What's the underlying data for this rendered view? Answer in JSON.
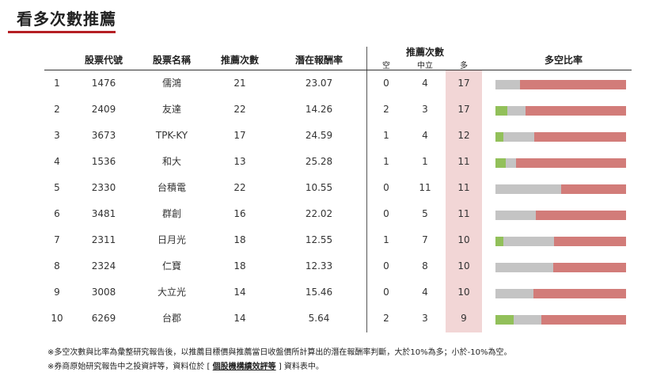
{
  "title": "看多次數推薦",
  "headers": {
    "code": "股票代號",
    "name": "股票名稱",
    "count": "推薦次數",
    "potential": "潛在報酬率",
    "stance_group": "推薦次數",
    "bear": "空",
    "neutral": "中立",
    "bull": "多",
    "ratio": "多空比率"
  },
  "colors": {
    "accent_rule": "#b51f24",
    "bull_column_bg": "#f2d6d6",
    "bar_bull": "#92c05a",
    "bar_neutral": "#c4c4c4",
    "bar_bear_rest": "#d27c79"
  },
  "rows": [
    {
      "rank": "1",
      "code": "1476",
      "name": "儒鴻",
      "count": "21",
      "potential": "23.07",
      "bear": "0",
      "neutral": "4",
      "bull": "17",
      "bar": {
        "bull": 0,
        "neutral": 0.19
      }
    },
    {
      "rank": "2",
      "code": "2409",
      "name": "友達",
      "count": "22",
      "potential": "14.26",
      "bear": "2",
      "neutral": "3",
      "bull": "17",
      "bar": {
        "bull": 0.09,
        "neutral": 0.14
      }
    },
    {
      "rank": "3",
      "code": "3673",
      "name": "TPK-KY",
      "count": "17",
      "potential": "24.59",
      "bear": "1",
      "neutral": "4",
      "bull": "12",
      "bar": {
        "bull": 0.06,
        "neutral": 0.24
      }
    },
    {
      "rank": "4",
      "code": "1536",
      "name": "和大",
      "count": "13",
      "potential": "25.28",
      "bear": "1",
      "neutral": "1",
      "bull": "11",
      "bar": {
        "bull": 0.08,
        "neutral": 0.08
      }
    },
    {
      "rank": "5",
      "code": "2330",
      "name": "台積電",
      "count": "22",
      "potential": "10.55",
      "bear": "0",
      "neutral": "11",
      "bull": "11",
      "bar": {
        "bull": 0,
        "neutral": 0.5
      }
    },
    {
      "rank": "6",
      "code": "3481",
      "name": "群創",
      "count": "16",
      "potential": "22.02",
      "bear": "0",
      "neutral": "5",
      "bull": "11",
      "bar": {
        "bull": 0,
        "neutral": 0.31
      }
    },
    {
      "rank": "7",
      "code": "2311",
      "name": "日月光",
      "count": "18",
      "potential": "12.55",
      "bear": "1",
      "neutral": "7",
      "bull": "10",
      "bar": {
        "bull": 0.06,
        "neutral": 0.39
      }
    },
    {
      "rank": "8",
      "code": "2324",
      "name": "仁寶",
      "count": "18",
      "potential": "12.33",
      "bear": "0",
      "neutral": "8",
      "bull": "10",
      "bar": {
        "bull": 0,
        "neutral": 0.44
      }
    },
    {
      "rank": "9",
      "code": "3008",
      "name": "大立光",
      "count": "14",
      "potential": "15.46",
      "bear": "0",
      "neutral": "4",
      "bull": "10",
      "bar": {
        "bull": 0,
        "neutral": 0.29
      }
    },
    {
      "rank": "10",
      "code": "6269",
      "name": "台郡",
      "count": "14",
      "potential": "5.64",
      "bear": "2",
      "neutral": "3",
      "bull": "9",
      "bar": {
        "bull": 0.14,
        "neutral": 0.21
      }
    }
  ],
  "notes": {
    "line1": "※多空次數與比率為彙整研究報告後，以推薦目標價與推薦當日收盤價所計算出的潛在報酬率判斷，大於10%為多；小於-10%為空。",
    "line2_prefix": "※券商原始研究報告中之投資評等，資料位於 [ ",
    "line2_link": "個股機構績效評等",
    "line2_suffix": " ] 資料表中。"
  }
}
